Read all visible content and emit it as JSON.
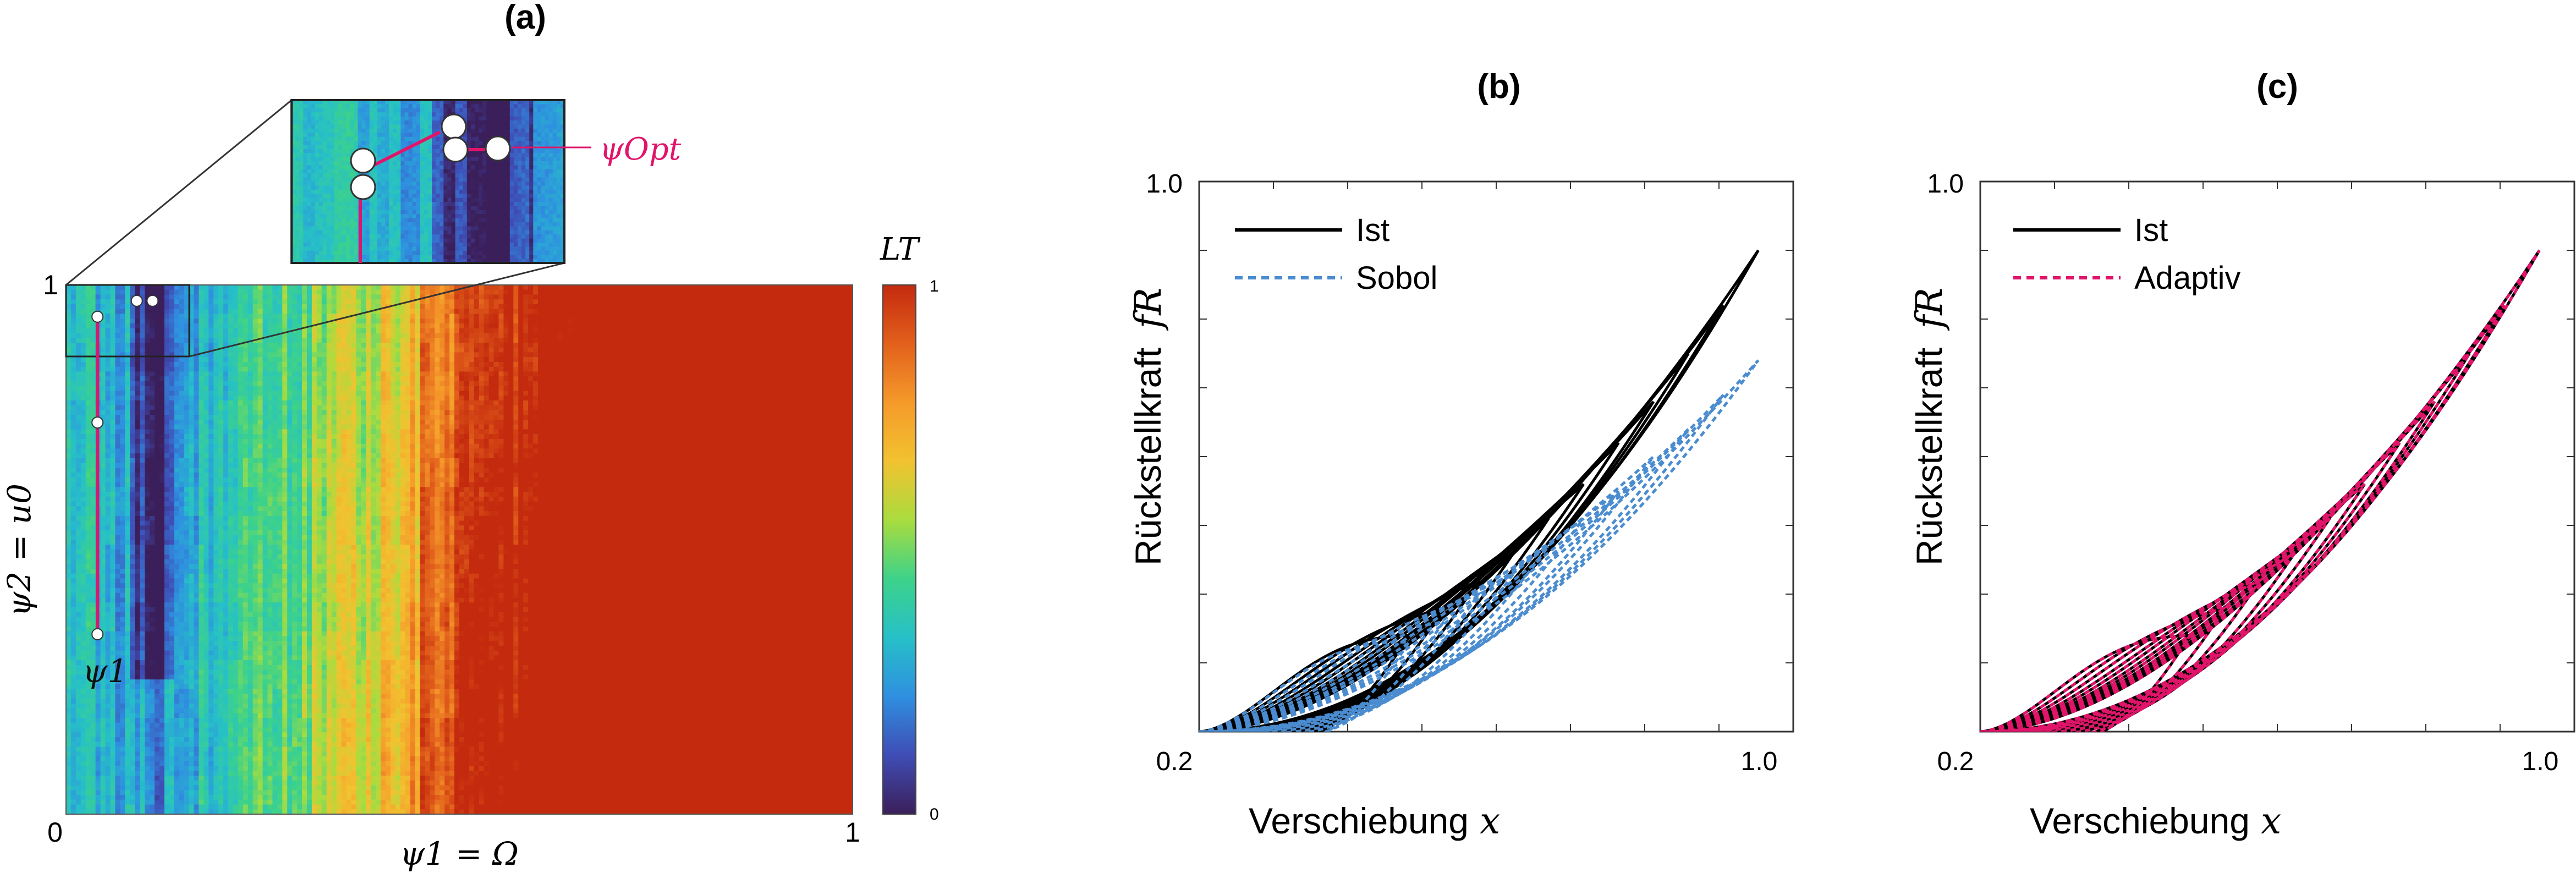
{
  "colors": {
    "measured": "#000000",
    "sobol": "#4a8ccf",
    "adaptive": "#e0156a",
    "path_arrow": "#e0156a",
    "colormap": [
      "#3b1f5a",
      "#3f4db5",
      "#2f8fe0",
      "#26c0c8",
      "#3dd28a",
      "#a9dc3e",
      "#f2c230",
      "#f59a2a",
      "#e2601c",
      "#c42a0e"
    ]
  },
  "panel_a": {
    "label": "(a)",
    "x_tick_min": "0",
    "x_tick_max": "1",
    "y_tick_max": "1",
    "xlabel": "ψ1 = Ω",
    "ylabel": "ψ2 = u0",
    "psi1_label": "ψ1",
    "opt_label": "ψOpt",
    "colorbar": {
      "label": "LT",
      "tick_max": "1",
      "tick_min": "0",
      "colormap": "turbo-like"
    },
    "heatmap": {
      "x_range": [
        0,
        1
      ],
      "y_range": [
        0,
        1
      ],
      "value_range": [
        0,
        1
      ]
    },
    "search_path": [
      [
        0.04,
        0.34
      ],
      [
        0.04,
        0.74
      ],
      [
        0.04,
        0.94
      ],
      [
        0.09,
        0.97
      ],
      [
        0.11,
        0.97
      ]
    ]
  },
  "panel_b": {
    "label": "(b)",
    "x_tick_min": "0.2",
    "x_tick_max": "1.0",
    "y_tick_max": "1.0",
    "xlabel": "Verschiebung",
    "xlabel_var": "x",
    "ylabel": "Rückstellkraft",
    "ylabel_var": "fR",
    "legend": [
      "Ist",
      "Sobol"
    ]
  },
  "panel_c": {
    "label": "(c)",
    "x_tick_min": "0.2",
    "x_tick_max": "1.0",
    "y_tick_max": "1.0",
    "xlabel": "Verschiebung",
    "xlabel_var": "x",
    "ylabel": "Rückstellkraft",
    "ylabel_var": "fR",
    "legend": [
      "Ist",
      "Adaptiv"
    ]
  },
  "chart_data": [
    {
      "type": "heatmap",
      "title": "(a)",
      "xlabel": "ψ1 = Ω",
      "ylabel": "ψ2 = u0",
      "xlim": [
        0,
        1
      ],
      "ylim": [
        0,
        1
      ],
      "zlim": [
        0,
        1
      ],
      "colorbar_label": "LT",
      "description_points": [
        [
          0.04,
          0.34
        ],
        [
          0.04,
          0.74
        ],
        [
          0.04,
          0.94
        ],
        [
          0.09,
          0.97
        ],
        [
          0.11,
          0.97
        ]
      ]
    },
    {
      "type": "line",
      "title": "(b)",
      "xlabel": "Verschiebung x",
      "ylabel": "Rückstellkraft fR",
      "xlim": [
        0.2,
        1.0
      ],
      "ylim": [
        0.2,
        1.0
      ],
      "series": [
        {
          "name": "Ist",
          "loop_peaks": [
            [
              1.0,
              0.9
            ],
            [
              0.95,
              0.82
            ],
            [
              0.9,
              0.75
            ],
            [
              0.85,
              0.68
            ],
            [
              0.8,
              0.62
            ],
            [
              0.75,
              0.56
            ],
            [
              0.7,
              0.51
            ],
            [
              0.65,
              0.46
            ],
            [
              0.6,
              0.42
            ],
            [
              0.55,
              0.38
            ],
            [
              0.5,
              0.34
            ]
          ]
        },
        {
          "name": "Sobol",
          "loop_peaks": [
            [
              1.0,
              0.74
            ],
            [
              0.95,
              0.69
            ],
            [
              0.9,
              0.64
            ],
            [
              0.85,
              0.6
            ],
            [
              0.8,
              0.55
            ],
            [
              0.75,
              0.51
            ],
            [
              0.7,
              0.47
            ],
            [
              0.65,
              0.43
            ],
            [
              0.6,
              0.4
            ],
            [
              0.55,
              0.36
            ],
            [
              0.5,
              0.33
            ]
          ]
        }
      ]
    },
    {
      "type": "line",
      "title": "(c)",
      "xlabel": "Verschiebung x",
      "ylabel": "Rückstellkraft fR",
      "xlim": [
        0.2,
        1.0
      ],
      "ylim": [
        0.2,
        1.0
      ],
      "series": [
        {
          "name": "Ist",
          "loop_peaks": [
            [
              1.0,
              0.9
            ],
            [
              0.95,
              0.82
            ],
            [
              0.9,
              0.75
            ],
            [
              0.85,
              0.68
            ],
            [
              0.8,
              0.62
            ],
            [
              0.75,
              0.56
            ],
            [
              0.7,
              0.51
            ],
            [
              0.65,
              0.46
            ],
            [
              0.6,
              0.42
            ],
            [
              0.55,
              0.38
            ],
            [
              0.5,
              0.34
            ]
          ]
        },
        {
          "name": "Adaptiv",
          "loop_peaks": [
            [
              1.0,
              0.9
            ],
            [
              0.95,
              0.82
            ],
            [
              0.9,
              0.75
            ],
            [
              0.85,
              0.68
            ],
            [
              0.8,
              0.62
            ],
            [
              0.75,
              0.56
            ],
            [
              0.7,
              0.51
            ],
            [
              0.65,
              0.46
            ],
            [
              0.6,
              0.42
            ],
            [
              0.55,
              0.38
            ],
            [
              0.5,
              0.34
            ]
          ]
        }
      ]
    }
  ]
}
